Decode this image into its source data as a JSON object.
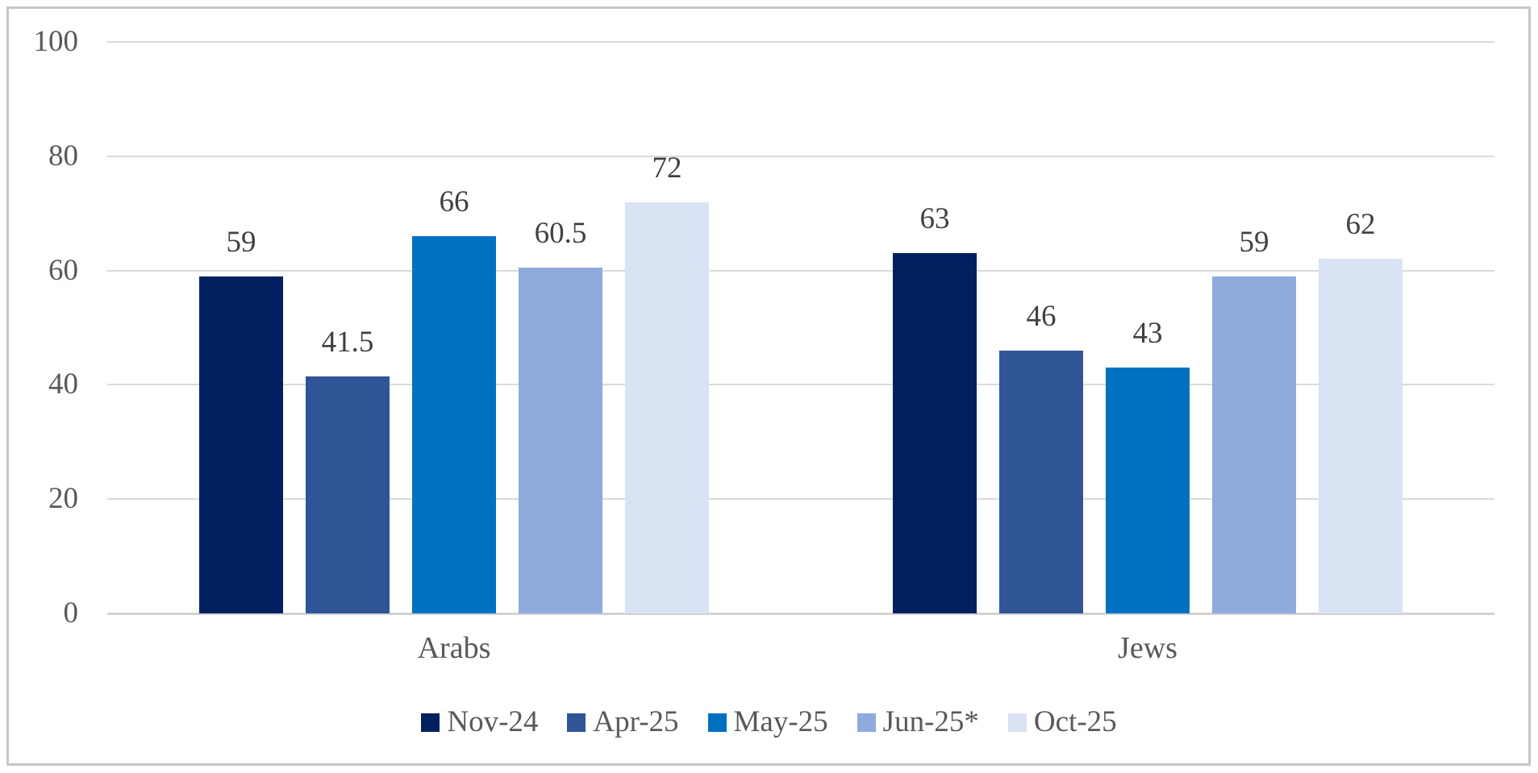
{
  "figure": {
    "background": "#ffffff",
    "border_color": "#c7c7c7"
  },
  "chart_data": {
    "type": "bar",
    "title": "",
    "categories": [
      "Arabs",
      "Jews"
    ],
    "series": [
      {
        "name": "Nov-24",
        "color": "#002060",
        "values": [
          59,
          63
        ],
        "value_labels": [
          "59",
          "63"
        ]
      },
      {
        "name": "Apr-25",
        "color": "#2F5597",
        "values": [
          41.5,
          46
        ],
        "value_labels": [
          "41.5",
          "46"
        ]
      },
      {
        "name": "May-25",
        "color": "#0070C0",
        "values": [
          66,
          43
        ],
        "value_labels": [
          "66",
          "43"
        ]
      },
      {
        "name": "Jun-25*",
        "color": "#8FAADC",
        "values": [
          60.5,
          59
        ],
        "value_labels": [
          "60.5",
          "59"
        ]
      },
      {
        "name": "Oct-25",
        "color": "#DAE3F3",
        "values": [
          72,
          62
        ],
        "value_labels": [
          "72",
          "62"
        ]
      }
    ],
    "y_axis": {
      "min": 0,
      "max": 100,
      "step": 20,
      "ticks": [
        "0",
        "20",
        "40",
        "60",
        "80",
        "100"
      ]
    },
    "xlabel": "",
    "ylabel": "",
    "grid": true,
    "gridline_color": "#dadada",
    "axis_line_color": "#d2d2d2",
    "tick_text_color": "#595959",
    "data_label_color": "#404040",
    "legend_position": "bottom",
    "data_labels": true
  }
}
